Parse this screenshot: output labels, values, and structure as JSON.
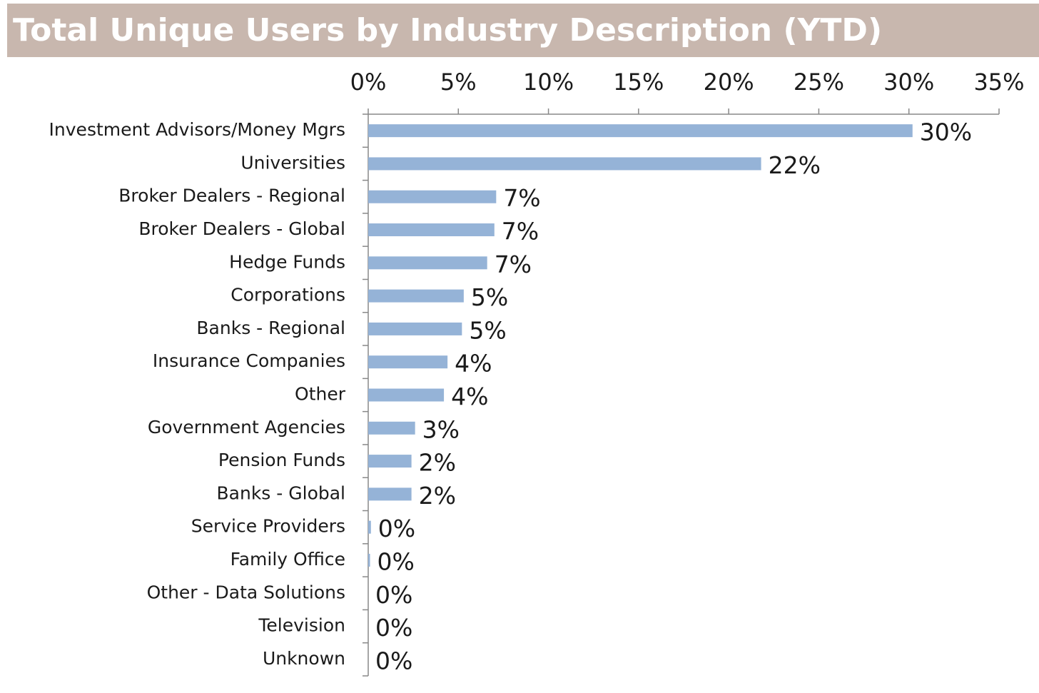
{
  "chart_data": {
    "type": "bar",
    "orientation": "horizontal",
    "title": "Total Unique Users by Industry Description (YTD)",
    "categories": [
      "Investment Advisors/Money Mgrs",
      "Universities",
      "Broker Dealers - Regional",
      "Broker Dealers - Global",
      "Hedge Funds",
      "Corporations",
      "Banks - Regional",
      "Insurance Companies",
      "Other",
      "Government Agencies",
      "Pension Funds",
      "Banks - Global",
      "Service Providers",
      "Family Office",
      "Other - Data Solutions",
      "Television",
      "Unknown"
    ],
    "values": [
      30.2,
      21.8,
      7.1,
      7.0,
      6.6,
      5.3,
      5.2,
      4.4,
      4.2,
      2.6,
      2.4,
      2.4,
      0.15,
      0.1,
      0,
      0,
      0
    ],
    "value_labels": [
      "30%",
      "22%",
      "7%",
      "7%",
      "7%",
      "5%",
      "5%",
      "4%",
      "4%",
      "3%",
      "2%",
      "2%",
      "0%",
      "0%",
      "0%",
      "0%",
      "0%"
    ],
    "color": "#95b3d7",
    "xlim": [
      0,
      35
    ],
    "xticks": [
      {
        "value": 0,
        "label": "0%"
      },
      {
        "value": 5,
        "label": "5%"
      },
      {
        "value": 10,
        "label": "10%"
      },
      {
        "value": 15,
        "label": "15%"
      },
      {
        "value": 20,
        "label": "20%"
      },
      {
        "value": 25,
        "label": "25%"
      },
      {
        "value": 30,
        "label": "30%"
      },
      {
        "value": 35,
        "label": "35%"
      }
    ]
  }
}
